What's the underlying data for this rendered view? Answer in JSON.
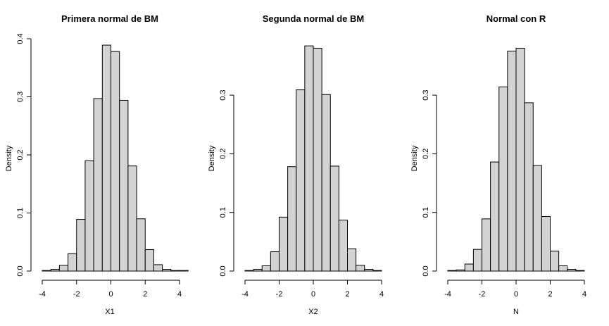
{
  "chart_data": [
    {
      "type": "bar",
      "title": "Primera normal de BM",
      "xlabel": "X1",
      "ylabel": "Density",
      "bin_width": 0.5,
      "bin_starts": [
        -4.0,
        -3.5,
        -3.0,
        -2.5,
        -2.0,
        -1.5,
        -1.0,
        -0.5,
        0.0,
        0.5,
        1.0,
        1.5,
        2.0,
        2.5,
        3.0,
        3.5,
        4.0
      ],
      "values": [
        0.001,
        0.003,
        0.01,
        0.03,
        0.089,
        0.19,
        0.297,
        0.389,
        0.378,
        0.294,
        0.181,
        0.09,
        0.037,
        0.011,
        0.003,
        0.001,
        0.001
      ],
      "xlim": [
        -4,
        4.5
      ],
      "ylim": [
        0,
        0.4
      ],
      "xticks": [
        -4,
        -2,
        0,
        2,
        4
      ],
      "xtick_labels": [
        "-4",
        "-2",
        "0",
        "2",
        "4"
      ],
      "yticks": [
        0,
        0.1,
        0.2,
        0.3,
        0.4
      ],
      "ytick_labels": [
        "0.0",
        "0.1",
        "0.2",
        "0.3",
        "0.4"
      ],
      "bar_color": "#d3d3d3"
    },
    {
      "type": "bar",
      "title": "Segunda normal de BM",
      "xlabel": "X2",
      "ylabel": "Density",
      "bin_width": 0.5,
      "bin_starts": [
        -4.0,
        -3.5,
        -3.0,
        -2.5,
        -2.0,
        -1.5,
        -1.0,
        -0.5,
        0.0,
        0.5,
        1.0,
        1.5,
        2.0,
        2.5,
        3.0,
        3.5
      ],
      "values": [
        0.001,
        0.003,
        0.009,
        0.033,
        0.092,
        0.178,
        0.309,
        0.384,
        0.38,
        0.301,
        0.179,
        0.087,
        0.038,
        0.01,
        0.003,
        0.001
      ],
      "xlim": [
        -4,
        4
      ],
      "ylim": [
        0,
        0.3
      ],
      "xticks": [
        -4,
        -2,
        0,
        2,
        4
      ],
      "xtick_labels": [
        "-4",
        "-2",
        "0",
        "2",
        "4"
      ],
      "yticks": [
        0,
        0.1,
        0.2,
        0.3
      ],
      "ytick_labels": [
        "0.0",
        "0.1",
        "0.2",
        "0.3"
      ],
      "bar_color": "#d3d3d3"
    },
    {
      "type": "bar",
      "title": "Normal con R",
      "xlabel": "N",
      "ylabel": "Density",
      "bin_width": 0.5,
      "bin_starts": [
        -4.0,
        -3.5,
        -3.0,
        -2.5,
        -2.0,
        -1.5,
        -1.0,
        -0.5,
        0.0,
        0.5,
        1.0,
        1.5,
        2.0,
        2.5,
        3.0,
        3.5
      ],
      "values": [
        0.001,
        0.002,
        0.012,
        0.037,
        0.089,
        0.186,
        0.314,
        0.375,
        0.38,
        0.287,
        0.18,
        0.093,
        0.034,
        0.009,
        0.003,
        0.001
      ],
      "xlim": [
        -4,
        4
      ],
      "ylim": [
        0,
        0.3
      ],
      "xticks": [
        -4,
        -2,
        0,
        2,
        4
      ],
      "xtick_labels": [
        "-4",
        "-2",
        "0",
        "2",
        "4"
      ],
      "yticks": [
        0,
        0.1,
        0.2,
        0.3
      ],
      "ytick_labels": [
        "0.0",
        "0.1",
        "0.2",
        "0.3"
      ],
      "bar_color": "#d3d3d3"
    }
  ]
}
